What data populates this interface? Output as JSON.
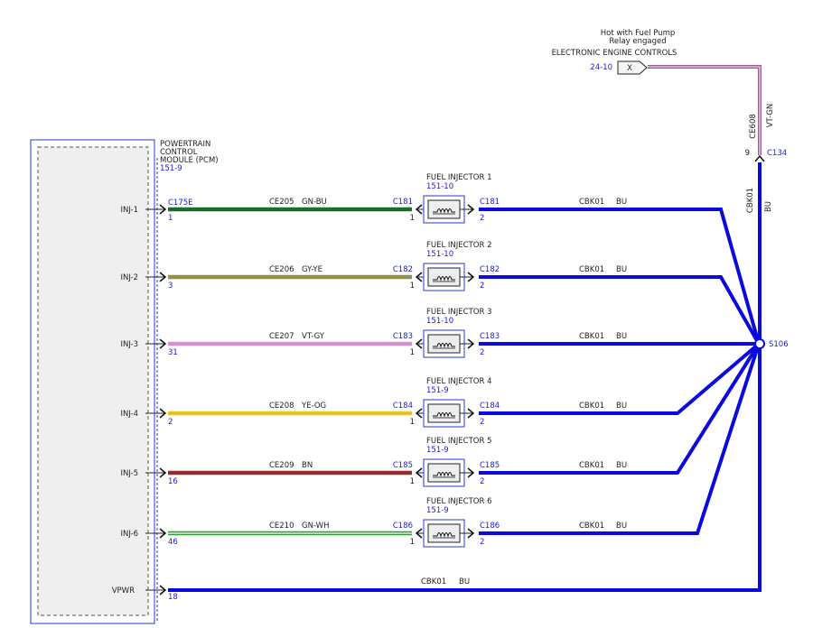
{
  "top": {
    "note1": "Hot with Fuel Pump",
    "note2": "Relay engaged",
    "label": "ELECTRONIC ENGINE CONTROLS",
    "ref": "24-10",
    "tag": "X"
  },
  "vertical": {
    "circuit": "CE608",
    "color": "VT-GN",
    "pin": "9",
    "connector": "C134",
    "lower_circuit": "CBK01",
    "lower_color": "BU"
  },
  "pcm": {
    "line1": "POWERTRAIN",
    "line2": "CONTROL",
    "line3": "MODULE (PCM)",
    "ref": "151-9",
    "connector": "C175E"
  },
  "splice": "S106",
  "injectors": [
    {
      "pcm_pin_label": "INJ-1",
      "pcm_pin": "1",
      "circuit": "CE205",
      "color": "GN-BU",
      "connector": "C181",
      "in_pin": "1",
      "out_pin": "2",
      "title": "FUEL INJECTOR 1",
      "ref": "151-10",
      "out_circuit": "CBK01",
      "out_color": "BU"
    },
    {
      "pcm_pin_label": "INJ-2",
      "pcm_pin": "3",
      "circuit": "CE206",
      "color": "GY-YE",
      "connector": "C182",
      "in_pin": "1",
      "out_pin": "2",
      "title": "FUEL INJECTOR 2",
      "ref": "151-10",
      "out_circuit": "CBK01",
      "out_color": "BU"
    },
    {
      "pcm_pin_label": "INJ-3",
      "pcm_pin": "31",
      "circuit": "CE207",
      "color": "VT-GY",
      "connector": "C183",
      "in_pin": "1",
      "out_pin": "2",
      "title": "FUEL INJECTOR 3",
      "ref": "151-10",
      "out_circuit": "CBK01",
      "out_color": "BU"
    },
    {
      "pcm_pin_label": "INJ-4",
      "pcm_pin": "2",
      "circuit": "CE208",
      "color": "YE-OG",
      "connector": "C184",
      "in_pin": "1",
      "out_pin": "2",
      "title": "FUEL INJECTOR 4",
      "ref": "151-9",
      "out_circuit": "CBK01",
      "out_color": "BU"
    },
    {
      "pcm_pin_label": "INJ-5",
      "pcm_pin": "16",
      "circuit": "CE209",
      "color": "BN",
      "connector": "C185",
      "in_pin": "1",
      "out_pin": "2",
      "title": "FUEL INJECTOR 5",
      "ref": "151-9",
      "out_circuit": "CBK01",
      "out_color": "BU"
    },
    {
      "pcm_pin_label": "INJ-6",
      "pcm_pin": "46",
      "circuit": "CE210",
      "color": "GN-WH",
      "connector": "C186",
      "in_pin": "1",
      "out_pin": "2",
      "title": "FUEL INJECTOR 6",
      "ref": "151-9",
      "out_circuit": "CBK01",
      "out_color": "BU"
    }
  ],
  "vpwr": {
    "label": "VPWR",
    "pin": "18",
    "circuit": "CBK01",
    "color": "BU"
  },
  "colors": {
    "bu": "#0a0adf",
    "blue_text": "#1a1ad6",
    "pcm_fill": "#efefef",
    "GN-BU": [
      "#1f6b2e",
      "#1a6b2e"
    ],
    "GY-YE": [
      "#8c8c5a",
      "#9a9a2a"
    ],
    "VT-GY": [
      "#d98fd2",
      "#c59ac2"
    ],
    "YE-OG": [
      "#e8cf16",
      "#e9b32b"
    ],
    "BN": [
      "#9b2f2f",
      "#8a2a2a"
    ],
    "GN-WH": [
      "#2f9d2f",
      "#dff0df"
    ]
  }
}
